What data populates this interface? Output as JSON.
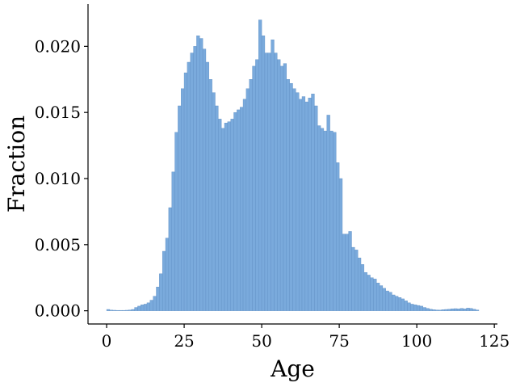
{
  "chart_data": {
    "type": "bar",
    "title": "",
    "xlabel": "Age",
    "ylabel": "Fraction",
    "xlim": [
      -6,
      126
    ],
    "ylim": [
      -0.001,
      0.0232
    ],
    "xticks": [
      0,
      25,
      50,
      75,
      100,
      125
    ],
    "xtick_labels": [
      "0",
      "25",
      "50",
      "75",
      "100",
      "125"
    ],
    "yticks": [
      0.0,
      0.005,
      0.01,
      0.015,
      0.02
    ],
    "ytick_labels": [
      "0.000",
      "0.005",
      "0.010",
      "0.015",
      "0.020"
    ],
    "grid": false,
    "legend": "none",
    "bin_width": 1,
    "bin_start": 0,
    "bar_color": "#7aaadc",
    "bar_edge_color": "#5f8fc4",
    "values": [
      0.0001,
      5e-05,
      4e-05,
      3e-05,
      3e-05,
      3e-05,
      4e-05,
      6e-05,
      0.0001,
      0.00025,
      0.00035,
      0.00045,
      0.0005,
      0.0006,
      0.0008,
      0.0011,
      0.0018,
      0.0028,
      0.0045,
      0.0055,
      0.0078,
      0.0105,
      0.0135,
      0.0155,
      0.0168,
      0.018,
      0.0188,
      0.0195,
      0.02,
      0.0208,
      0.0206,
      0.0198,
      0.0188,
      0.0175,
      0.0165,
      0.0155,
      0.0145,
      0.0138,
      0.0142,
      0.0143,
      0.0145,
      0.015,
      0.0152,
      0.0154,
      0.016,
      0.0168,
      0.0175,
      0.0185,
      0.019,
      0.022,
      0.0208,
      0.0195,
      0.0195,
      0.0205,
      0.0195,
      0.019,
      0.0185,
      0.0187,
      0.0175,
      0.0172,
      0.0168,
      0.0165,
      0.016,
      0.0162,
      0.0158,
      0.0161,
      0.0164,
      0.0155,
      0.014,
      0.0138,
      0.0136,
      0.0148,
      0.0136,
      0.0135,
      0.0112,
      0.01,
      0.0058,
      0.0058,
      0.006,
      0.0048,
      0.0046,
      0.004,
      0.0035,
      0.0029,
      0.0027,
      0.0025,
      0.0024,
      0.0021,
      0.0019,
      0.0017,
      0.0015,
      0.0014,
      0.0012,
      0.0011,
      0.001,
      0.0009,
      0.00075,
      0.0006,
      0.0005,
      0.00045,
      0.0004,
      0.00035,
      0.00025,
      0.00018,
      0.00012,
      8e-05,
      6e-05,
      5e-05,
      8e-05,
      0.0001,
      0.00012,
      0.00015,
      0.00016,
      0.00014,
      0.00018,
      0.00015,
      0.0002,
      0.00018,
      0.00012,
      6e-05
    ]
  }
}
